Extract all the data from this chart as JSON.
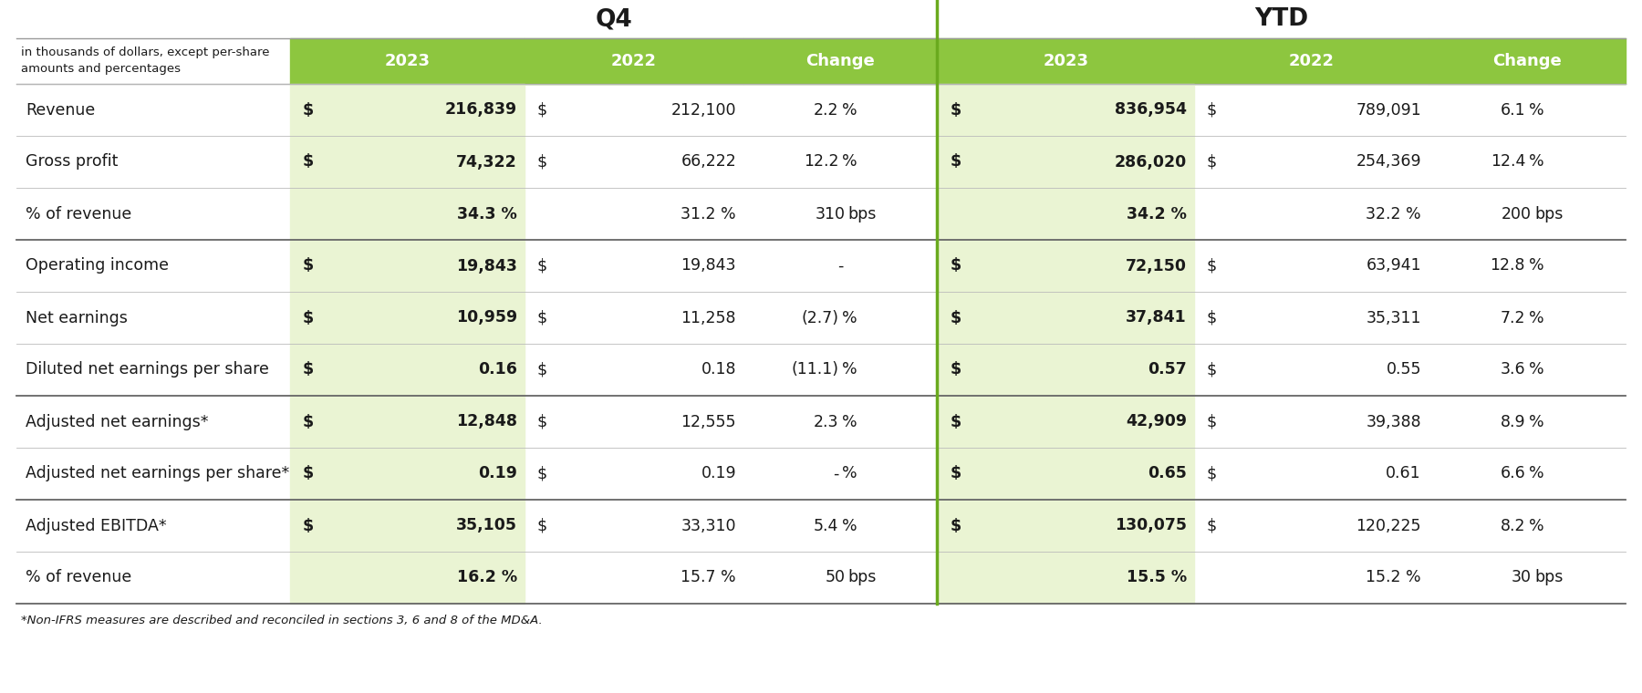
{
  "title_q4": "Q4",
  "title_ytd": "YTD",
  "header_note": "in thousands of dollars, except per-share\namounts and percentages",
  "col_headers": [
    "2023",
    "2022",
    "Change",
    "2023",
    "2022",
    "Change"
  ],
  "header_bg": "#8dc63f",
  "header_text_color": "#ffffff",
  "green_col_bg": "#eaf4d3",
  "footnote": "*Non-IFRS measures are described and reconciled in sections 3, 6 and 8 of the MD&A.",
  "divider_green": "#6aaa1e",
  "rows": [
    {
      "label": "Revenue",
      "q4_2023_dollar": true,
      "q4_2023": "216,839",
      "q4_2022_dollar": true,
      "q4_2022": "212,100",
      "q4_change": "2.2",
      "q4_unit": "%",
      "ytd_2023_dollar": true,
      "ytd_2023": "836,954",
      "ytd_2022_dollar": true,
      "ytd_2022": "789,091",
      "ytd_change": "6.1",
      "ytd_unit": "%",
      "group_top": true
    },
    {
      "label": "Gross profit",
      "q4_2023_dollar": true,
      "q4_2023": "74,322",
      "q4_2022_dollar": true,
      "q4_2022": "66,222",
      "q4_change": "12.2",
      "q4_unit": "%",
      "ytd_2023_dollar": true,
      "ytd_2023": "286,020",
      "ytd_2022_dollar": true,
      "ytd_2022": "254,369",
      "ytd_change": "12.4",
      "ytd_unit": "%",
      "group_top": false
    },
    {
      "label": "% of revenue",
      "q4_2023_dollar": false,
      "q4_2023": "34.3 %",
      "q4_2022_dollar": false,
      "q4_2022": "31.2 %",
      "q4_change": "310",
      "q4_unit": "bps",
      "ytd_2023_dollar": false,
      "ytd_2023": "34.2 %",
      "ytd_2022_dollar": false,
      "ytd_2022": "32.2 %",
      "ytd_change": "200",
      "ytd_unit": "bps",
      "group_top": false
    },
    {
      "label": "Operating income",
      "q4_2023_dollar": true,
      "q4_2023": "19,843",
      "q4_2022_dollar": true,
      "q4_2022": "19,843",
      "q4_change": "-",
      "q4_unit": "",
      "ytd_2023_dollar": true,
      "ytd_2023": "72,150",
      "ytd_2022_dollar": true,
      "ytd_2022": "63,941",
      "ytd_change": "12.8",
      "ytd_unit": "%",
      "group_top": true
    },
    {
      "label": "Net earnings",
      "q4_2023_dollar": true,
      "q4_2023": "10,959",
      "q4_2022_dollar": true,
      "q4_2022": "11,258",
      "q4_change": "(2.7)",
      "q4_unit": "%",
      "ytd_2023_dollar": true,
      "ytd_2023": "37,841",
      "ytd_2022_dollar": true,
      "ytd_2022": "35,311",
      "ytd_change": "7.2",
      "ytd_unit": "%",
      "group_top": false
    },
    {
      "label": "Diluted net earnings per share",
      "q4_2023_dollar": true,
      "q4_2023": "0.16",
      "q4_2022_dollar": true,
      "q4_2022": "0.18",
      "q4_change": "(11.1)",
      "q4_unit": "%",
      "ytd_2023_dollar": true,
      "ytd_2023": "0.57",
      "ytd_2022_dollar": true,
      "ytd_2022": "0.55",
      "ytd_change": "3.6",
      "ytd_unit": "%",
      "group_top": false
    },
    {
      "label": "Adjusted net earnings*",
      "q4_2023_dollar": true,
      "q4_2023": "12,848",
      "q4_2022_dollar": true,
      "q4_2022": "12,555",
      "q4_change": "2.3",
      "q4_unit": "%",
      "ytd_2023_dollar": true,
      "ytd_2023": "42,909",
      "ytd_2022_dollar": true,
      "ytd_2022": "39,388",
      "ytd_change": "8.9",
      "ytd_unit": "%",
      "group_top": true
    },
    {
      "label": "Adjusted net earnings per share*",
      "q4_2023_dollar": true,
      "q4_2023": "0.19",
      "q4_2022_dollar": true,
      "q4_2022": "0.19",
      "q4_change": "-",
      "q4_unit": "%",
      "ytd_2023_dollar": true,
      "ytd_2023": "0.65",
      "ytd_2022_dollar": true,
      "ytd_2022": "0.61",
      "ytd_change": "6.6",
      "ytd_unit": "%",
      "group_top": false
    },
    {
      "label": "Adjusted EBITDA*",
      "q4_2023_dollar": true,
      "q4_2023": "35,105",
      "q4_2022_dollar": true,
      "q4_2022": "33,310",
      "q4_change": "5.4",
      "q4_unit": "%",
      "ytd_2023_dollar": true,
      "ytd_2023": "130,075",
      "ytd_2022_dollar": true,
      "ytd_2022": "120,225",
      "ytd_change": "8.2",
      "ytd_unit": "%",
      "group_top": true
    },
    {
      "label": "% of revenue",
      "q4_2023_dollar": false,
      "q4_2023": "16.2 %",
      "q4_2022_dollar": false,
      "q4_2022": "15.7 %",
      "q4_change": "50",
      "q4_unit": "bps",
      "ytd_2023_dollar": false,
      "ytd_2023": "15.5 %",
      "ytd_2022_dollar": false,
      "ytd_2022": "15.2 %",
      "ytd_change": "30",
      "ytd_unit": "bps",
      "group_top": false
    }
  ]
}
